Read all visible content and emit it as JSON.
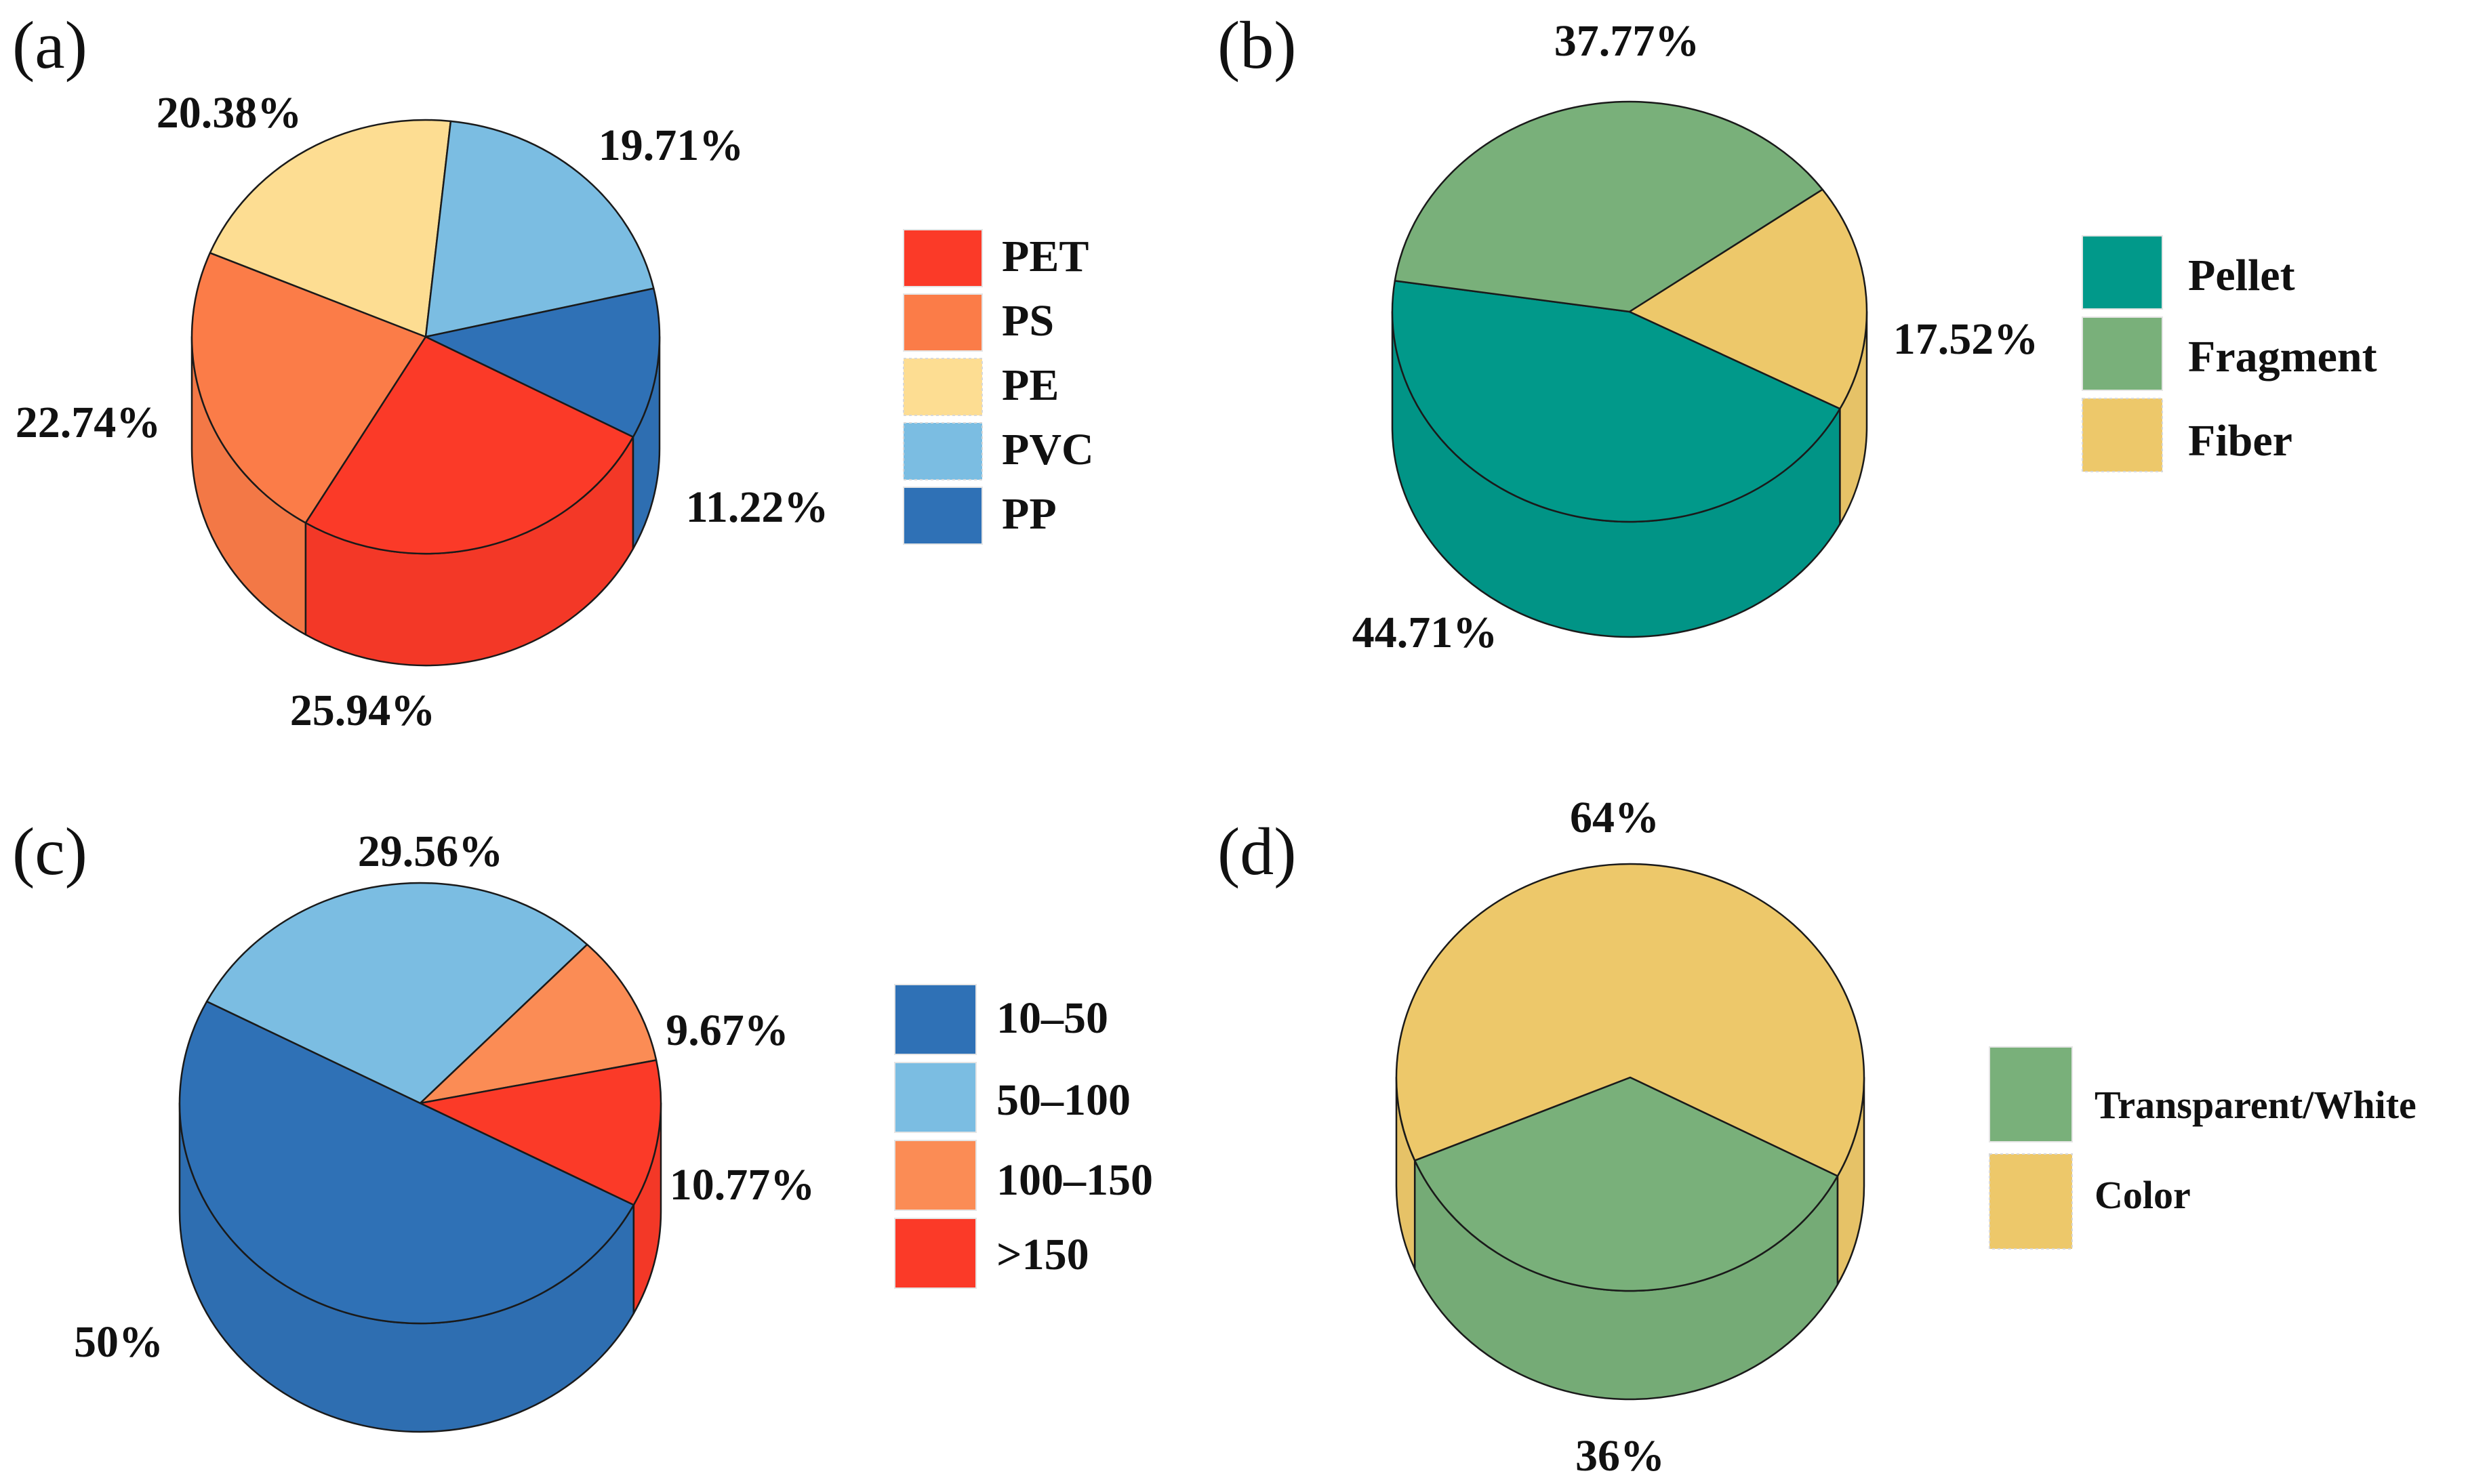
{
  "colors": {
    "pet": "#FB3A28",
    "ps": "#FB7C48",
    "pe": "#FDDD92",
    "pvc": "#7BBDE2",
    "pp": "#2F71B6",
    "pellet": "#01998A",
    "fragment": "#79B07A",
    "fiber": "#EDC86A",
    "size_10_50": "#2F71B6",
    "size_50_100": "#7BBDE2",
    "size_100_150": "#FB8C55",
    "size_150": "#FB3A28",
    "transparent": "#79B07A",
    "color": "#EDC86A"
  },
  "chart_data": [
    {
      "type": "pie",
      "panel": "(a)",
      "labels": [
        "PET",
        "PS",
        "PE",
        "PVC",
        "PP"
      ],
      "values": [
        25.94,
        22.74,
        20.38,
        19.71,
        11.22
      ],
      "value_labels": [
        "25.94%",
        "22.74%",
        "20.38%",
        "19.71%",
        "11.22%"
      ],
      "color_keys": [
        "pet",
        "ps",
        "pe",
        "pvc",
        "pp"
      ],
      "legend_position": "right"
    },
    {
      "type": "pie",
      "panel": "(b)",
      "labels": [
        "Pellet",
        "Fragment",
        "Fiber"
      ],
      "values": [
        44.71,
        37.77,
        17.52
      ],
      "value_labels": [
        "44.71%",
        "37.77%",
        "17.52%"
      ],
      "color_keys": [
        "pellet",
        "fragment",
        "fiber"
      ],
      "legend_position": "right"
    },
    {
      "type": "pie",
      "panel": "(c)",
      "labels": [
        "10–50",
        "50–100",
        "100–150",
        ">150"
      ],
      "values": [
        50,
        29.56,
        9.67,
        10.77
      ],
      "value_labels": [
        "50%",
        "29.56%",
        "9.67%",
        "10.77%"
      ],
      "color_keys": [
        "size_10_50",
        "size_50_100",
        "size_100_150",
        "size_150"
      ],
      "legend_position": "right"
    },
    {
      "type": "pie",
      "panel": "(d)",
      "labels": [
        "Transparent/White",
        "Color"
      ],
      "values": [
        36,
        64
      ],
      "value_labels": [
        "36%",
        "64%"
      ],
      "color_keys": [
        "transparent",
        "color"
      ],
      "legend_position": "right"
    }
  ]
}
